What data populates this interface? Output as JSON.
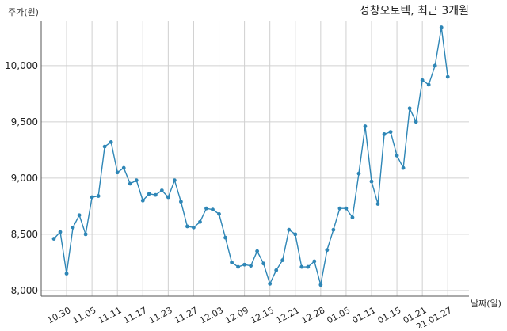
{
  "chart_data": {
    "type": "line",
    "title": "성창오토텍, 최근 3개월",
    "ylabel": "주가(원)",
    "xlabel": "날짜(일)",
    "ylim": [
      7950,
      10400
    ],
    "y_ticks": [
      8000,
      8500,
      9000,
      9500,
      10000
    ],
    "y_tick_labels": [
      "8,000",
      "8,500",
      "9,000",
      "9,500",
      "10,000"
    ],
    "x_tick_labels": [
      "10.30",
      "11.05",
      "11.11",
      "11.17",
      "11.23",
      "11.27",
      "12.03",
      "12.09",
      "12.15",
      "12.21",
      "12.28",
      "01.05",
      "01.11",
      "01.15",
      "01.21",
      "21.01.27"
    ],
    "x_tick_positions": [
      2,
      6,
      10,
      14,
      18,
      22,
      26,
      30,
      34,
      38,
      42,
      46,
      50,
      54,
      58,
      62
    ],
    "grid": true,
    "color": "#2e86b6",
    "series": [
      {
        "values": [
          8460,
          8520,
          8150,
          8560,
          8670,
          8500,
          8830,
          8840,
          9280,
          9320,
          9050,
          9090,
          8950,
          8980,
          8800,
          8860,
          8850,
          8890,
          8830,
          8980,
          8790,
          8570,
          8560,
          8610,
          8730,
          8720,
          8680,
          8470,
          8250,
          8210,
          8230,
          8220,
          8350,
          8240,
          8060,
          8180,
          8270,
          8540,
          8500,
          8210,
          8210,
          8260,
          8050,
          8360,
          8540,
          8730,
          8730,
          8650,
          9040,
          9460,
          8970,
          8770,
          9390,
          9410,
          9200,
          9090,
          9620,
          9500,
          9870,
          9830,
          10000,
          10340,
          9900
        ]
      }
    ]
  }
}
